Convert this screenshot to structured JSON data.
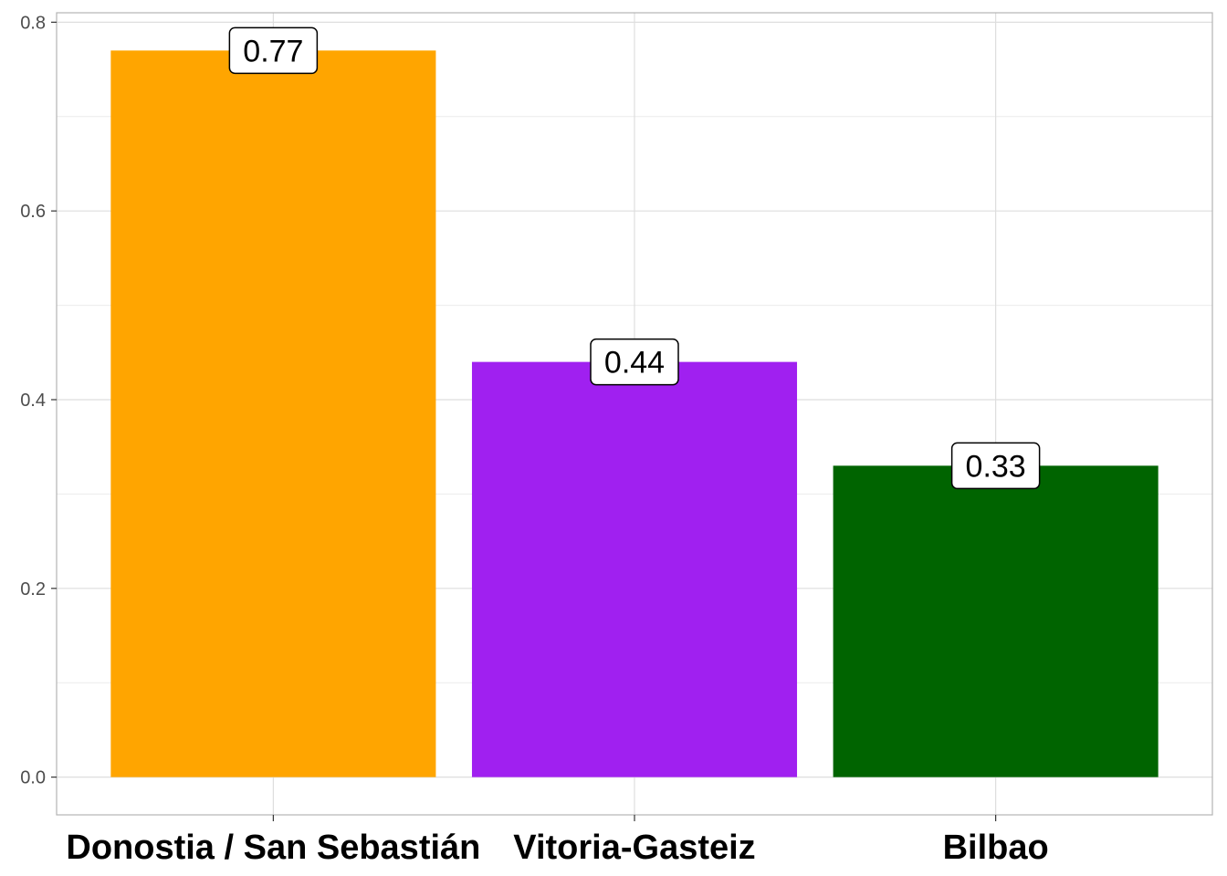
{
  "chart_data": {
    "type": "bar",
    "categories": [
      "Donostia / San Sebastián",
      "Vitoria-Gasteiz",
      "Bilbao"
    ],
    "values": [
      0.77,
      0.44,
      0.33
    ],
    "data_labels": [
      "0.77",
      "0.44",
      "0.33"
    ],
    "colors": [
      "#FFA500",
      "#A020F0",
      "#006400"
    ],
    "ylim": [
      -0.04,
      0.81
    ],
    "y_ticks": [
      0.0,
      0.2,
      0.4,
      0.6,
      0.8
    ],
    "y_tick_labels": [
      "0.0",
      "0.2",
      "0.4",
      "0.6",
      "0.8"
    ],
    "grid": true,
    "title": "",
    "xlabel": "",
    "ylabel": ""
  }
}
